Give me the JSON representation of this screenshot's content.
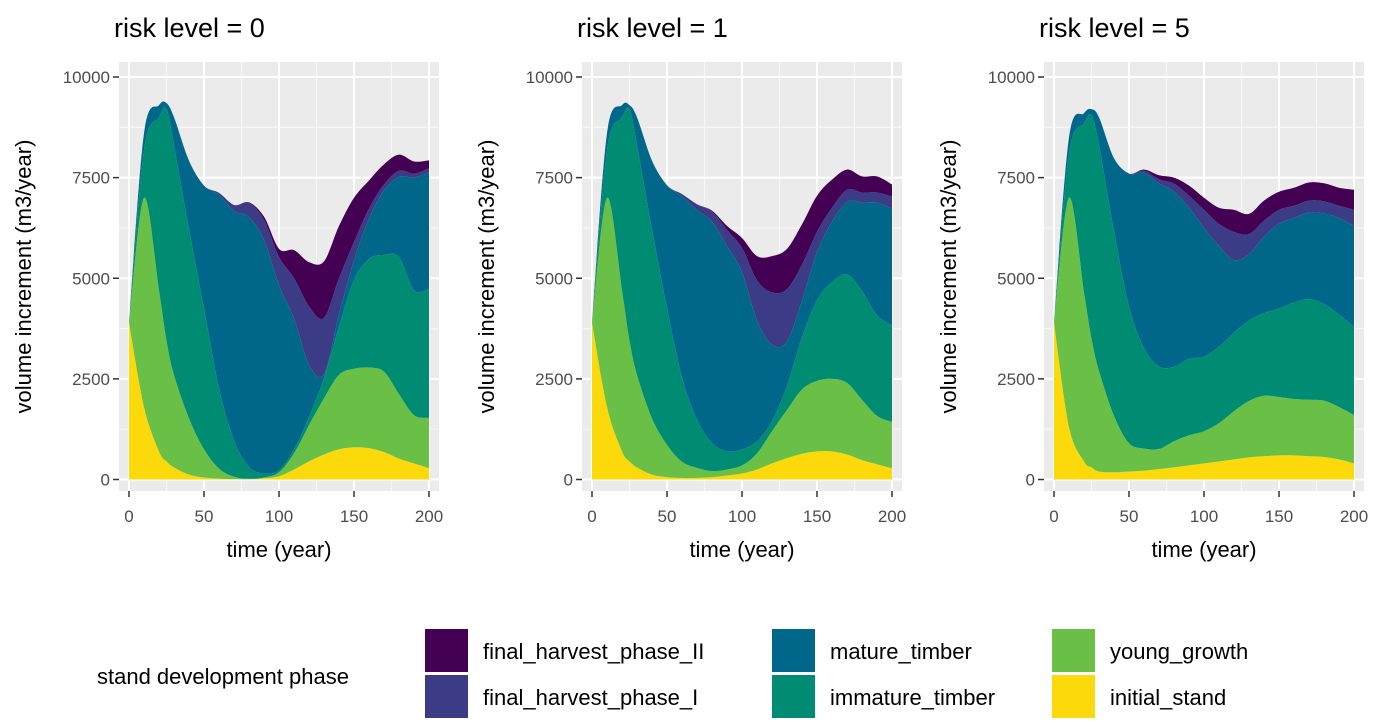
{
  "chart_data": [
    {
      "type": "area",
      "title": "risk level = 0",
      "xlabel": "time (year)",
      "ylabel": "volume increment (m3/year)",
      "xlim": [
        0,
        200
      ],
      "ylim": [
        0,
        10000
      ],
      "x_ticks": [
        "0",
        "50",
        "100",
        "150",
        "200"
      ],
      "y_ticks": [
        "0",
        "2500",
        "5000",
        "7500",
        "10000"
      ],
      "grid": true,
      "stacked": true,
      "x": [
        0,
        10,
        20,
        25,
        30,
        40,
        50,
        60,
        70,
        80,
        90,
        100,
        110,
        120,
        130,
        140,
        150,
        160,
        170,
        180,
        190,
        200
      ],
      "series": [
        {
          "name": "initial_stand",
          "values": [
            3900,
            1800,
            700,
            450,
            300,
            120,
            50,
            20,
            10,
            5,
            30,
            80,
            250,
            450,
            620,
            750,
            800,
            780,
            680,
            520,
            400,
            280
          ]
        },
        {
          "name": "young_growth",
          "values": [
            0,
            5200,
            4000,
            3000,
            2300,
            1400,
            700,
            250,
            60,
            10,
            20,
            100,
            400,
            900,
            1400,
            1850,
            1950,
            2000,
            2000,
            1600,
            1200,
            1250
          ]
        },
        {
          "name": "immature_timber",
          "values": [
            0,
            1200,
            4300,
            5750,
            5700,
            4700,
            3500,
            2000,
            900,
            300,
            100,
            50,
            100,
            200,
            500,
            1200,
            2200,
            2700,
            2900,
            3400,
            3100,
            3200
          ]
        },
        {
          "name": "mature_timber",
          "values": [
            0,
            400,
            300,
            150,
            700,
            1700,
            3050,
            4800,
            5700,
            6200,
            5800,
            4600,
            3250,
            1300,
            100,
            300,
            500,
            1000,
            1600,
            2000,
            2800,
            2900
          ]
        },
        {
          "name": "final_harvest_phase_I",
          "values": [
            0,
            0,
            0,
            0,
            0,
            0,
            0,
            50,
            150,
            350,
            500,
            700,
            1000,
            1450,
            1400,
            900,
            450,
            250,
            150,
            150,
            100,
            100
          ]
        },
        {
          "name": "final_harvest_phase_II",
          "values": [
            0,
            0,
            0,
            0,
            0,
            0,
            0,
            0,
            0,
            20,
            80,
            200,
            700,
            1100,
            1400,
            1300,
            1100,
            700,
            500,
            400,
            300,
            200
          ]
        }
      ]
    },
    {
      "type": "area",
      "title": "risk level = 1",
      "xlabel": "time (year)",
      "ylabel": "volume increment (m3/year)",
      "xlim": [
        0,
        200
      ],
      "ylim": [
        0,
        10000
      ],
      "x_ticks": [
        "0",
        "50",
        "100",
        "150",
        "200"
      ],
      "y_ticks": [
        "0",
        "2500",
        "5000",
        "7500",
        "10000"
      ],
      "grid": true,
      "stacked": true,
      "x": [
        0,
        10,
        20,
        25,
        30,
        40,
        50,
        60,
        70,
        80,
        90,
        100,
        110,
        120,
        130,
        140,
        150,
        160,
        170,
        180,
        190,
        200
      ],
      "series": [
        {
          "name": "initial_stand",
          "values": [
            3900,
            1800,
            700,
            450,
            300,
            120,
            60,
            40,
            40,
            60,
            100,
            150,
            250,
            400,
            530,
            640,
            700,
            700,
            620,
            480,
            380,
            280
          ]
        },
        {
          "name": "young_growth",
          "values": [
            0,
            5200,
            4000,
            3000,
            2300,
            1400,
            800,
            400,
            250,
            150,
            150,
            200,
            400,
            800,
            1200,
            1600,
            1750,
            1800,
            1780,
            1500,
            1200,
            1150
          ]
        },
        {
          "name": "immature_timber",
          "values": [
            0,
            1200,
            4300,
            5750,
            5700,
            4700,
            3400,
            2100,
            1200,
            700,
            450,
            400,
            300,
            250,
            600,
            1300,
            2000,
            2400,
            2700,
            2700,
            2500,
            2400
          ]
        },
        {
          "name": "mature_timber",
          "values": [
            0,
            400,
            300,
            100,
            700,
            1700,
            3050,
            4500,
            5200,
            5500,
            5100,
            4400,
            3000,
            1900,
            1100,
            900,
            1200,
            1500,
            1800,
            2200,
            2800,
            2900
          ]
        },
        {
          "name": "final_harvest_phase_I",
          "values": [
            0,
            0,
            0,
            0,
            0,
            0,
            0,
            50,
            150,
            250,
            400,
            600,
            1000,
            1300,
            1300,
            900,
            500,
            350,
            300,
            250,
            250,
            300
          ]
        },
        {
          "name": "final_harvest_phase_II",
          "values": [
            0,
            0,
            0,
            0,
            0,
            0,
            0,
            0,
            0,
            20,
            100,
            250,
            600,
            900,
            1000,
            1000,
            900,
            700,
            500,
            400,
            400,
            300
          ]
        }
      ]
    },
    {
      "type": "area",
      "title": "risk level = 5",
      "xlabel": "time (year)",
      "ylabel": "volume increment (m3/year)",
      "xlim": [
        0,
        200
      ],
      "ylim": [
        0,
        10000
      ],
      "x_ticks": [
        "0",
        "50",
        "100",
        "150",
        "200"
      ],
      "y_ticks": [
        "0",
        "2500",
        "5000",
        "7500",
        "10000"
      ],
      "grid": true,
      "stacked": true,
      "x": [
        0,
        10,
        20,
        25,
        30,
        40,
        50,
        60,
        70,
        80,
        90,
        100,
        110,
        120,
        130,
        140,
        150,
        160,
        170,
        180,
        190,
        200
      ],
      "series": [
        {
          "name": "initial_stand",
          "values": [
            3900,
            1300,
            450,
            300,
            200,
            180,
            200,
            220,
            260,
            300,
            350,
            400,
            450,
            500,
            550,
            580,
            600,
            600,
            580,
            560,
            500,
            400
          ]
        },
        {
          "name": "young_growth",
          "values": [
            0,
            5700,
            4200,
            3200,
            2500,
            1400,
            700,
            550,
            500,
            650,
            750,
            800,
            950,
            1200,
            1400,
            1500,
            1450,
            1400,
            1400,
            1400,
            1300,
            1200
          ]
        },
        {
          "name": "immature_timber",
          "values": [
            0,
            1100,
            4200,
            5550,
            5600,
            4600,
            3400,
            2500,
            2050,
            1850,
            1900,
            1850,
            1900,
            1950,
            2000,
            2050,
            2200,
            2400,
            2500,
            2400,
            2300,
            2200
          ]
        },
        {
          "name": "mature_timber",
          "values": [
            0,
            400,
            250,
            150,
            700,
            1800,
            3300,
            4350,
            4550,
            4350,
            3750,
            3200,
            2500,
            1800,
            1650,
            1900,
            2100,
            2100,
            2150,
            2250,
            2400,
            2500
          ]
        },
        {
          "name": "final_harvest_phase_I",
          "values": [
            0,
            0,
            0,
            0,
            0,
            0,
            0,
            50,
            100,
            200,
            300,
            450,
            550,
            700,
            500,
            400,
            350,
            300,
            300,
            300,
            300,
            400
          ]
        },
        {
          "name": "final_harvest_phase_II",
          "values": [
            0,
            0,
            0,
            0,
            0,
            0,
            0,
            30,
            100,
            150,
            250,
            300,
            400,
            550,
            500,
            500,
            450,
            450,
            450,
            450,
            450,
            500
          ]
        }
      ]
    }
  ],
  "legend": {
    "title": "stand development phase",
    "position": "bottom",
    "items": [
      {
        "label": "final_harvest_phase_II",
        "color": "#440154"
      },
      {
        "label": "final_harvest_phase_I",
        "color": "#3b3b86"
      },
      {
        "label": "mature_timber",
        "color": "#00678a"
      },
      {
        "label": "immature_timber",
        "color": "#008c72"
      },
      {
        "label": "young_growth",
        "color": "#6abf47"
      },
      {
        "label": "initial_stand",
        "color": "#fbd90b"
      }
    ]
  },
  "colors": {
    "panel_background": "#ebebeb",
    "grid_major": "#ffffff",
    "tick_text": "#4d4d4d"
  }
}
